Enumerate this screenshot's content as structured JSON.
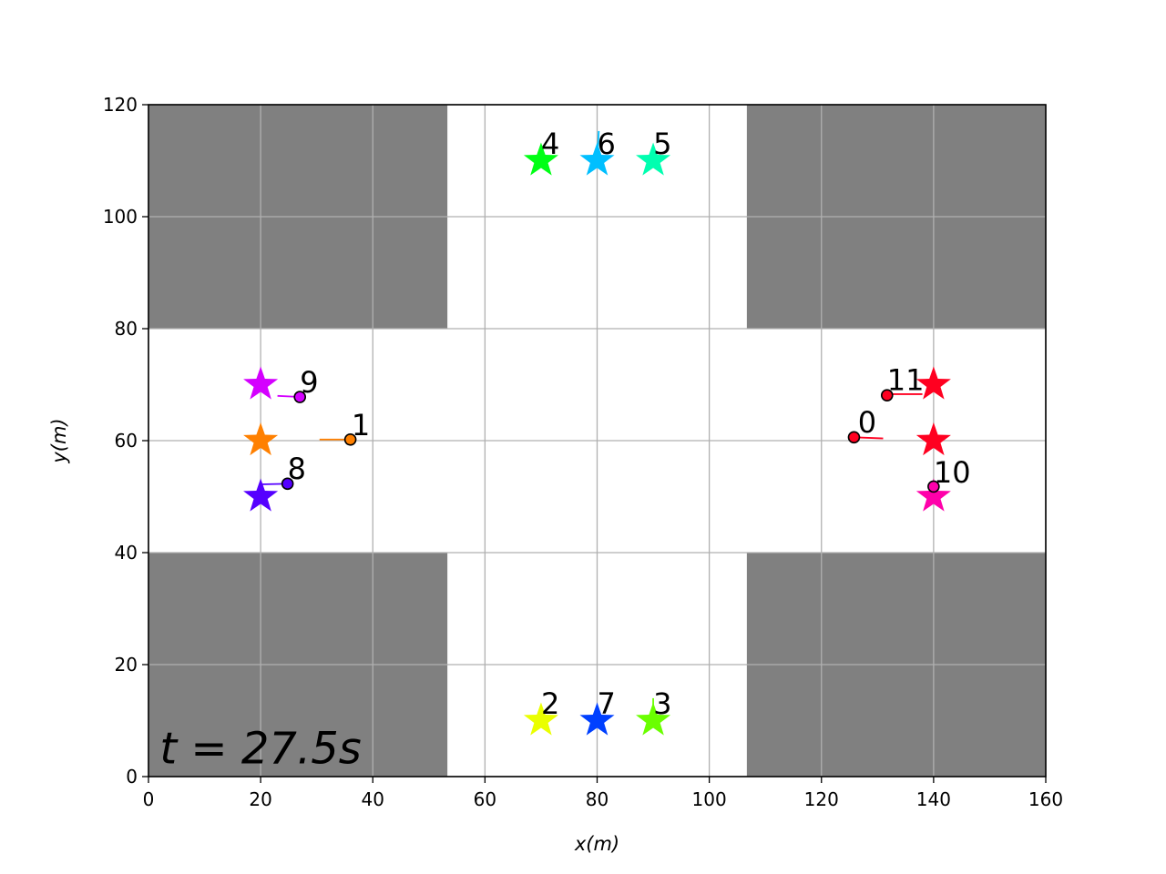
{
  "chart_data": {
    "type": "scatter",
    "title": "",
    "xlabel": "x(m)",
    "ylabel": "y(m)",
    "xlim": [
      0,
      160
    ],
    "ylim": [
      0,
      120
    ],
    "grid": true,
    "x_ticks": [
      0,
      20,
      40,
      60,
      80,
      100,
      120,
      140,
      160
    ],
    "y_ticks": [
      0,
      20,
      40,
      60,
      80,
      100,
      120
    ],
    "x_tick_labels": [
      "0",
      "20",
      "40",
      "60",
      "80",
      "100",
      "120",
      "140",
      "160"
    ],
    "y_tick_labels": [
      "0",
      "20",
      "40",
      "60",
      "80",
      "100",
      "120"
    ],
    "time_annotation": "t = 27.5s",
    "obstacles": [
      {
        "x0": 0,
        "x1": 53.3,
        "y0": 80,
        "y1": 120,
        "color": "#808080"
      },
      {
        "x0": 106.7,
        "x1": 160,
        "y0": 80,
        "y1": 120,
        "color": "#808080"
      },
      {
        "x0": 0,
        "x1": 53.3,
        "y0": 0,
        "y1": 40,
        "color": "#808080"
      },
      {
        "x0": 106.7,
        "x1": 160,
        "y0": 0,
        "y1": 40,
        "color": "#808080"
      }
    ],
    "goals": [
      {
        "agent": "0",
        "x": 140,
        "y": 60,
        "color": "#ff0020"
      },
      {
        "agent": "1",
        "x": 20,
        "y": 60,
        "color": "#ff8000"
      },
      {
        "agent": "2",
        "x": 70,
        "y": 10,
        "color": "#eaff00"
      },
      {
        "agent": "3",
        "x": 90,
        "y": 10,
        "color": "#6aff00"
      },
      {
        "agent": "4",
        "x": 70,
        "y": 110,
        "color": "#00ff15"
      },
      {
        "agent": "5",
        "x": 90,
        "y": 110,
        "color": "#00ffb0"
      },
      {
        "agent": "6",
        "x": 80,
        "y": 110,
        "color": "#00bfff"
      },
      {
        "agent": "7",
        "x": 80,
        "y": 10,
        "color": "#0040ff"
      },
      {
        "agent": "8",
        "x": 20,
        "y": 50,
        "color": "#5500ff"
      },
      {
        "agent": "9",
        "x": 20,
        "y": 70,
        "color": "#d400ff"
      },
      {
        "agent": "10",
        "x": 140,
        "y": 50,
        "color": "#ff00aa"
      },
      {
        "agent": "11",
        "x": 140,
        "y": 70,
        "color": "#ff0020"
      }
    ],
    "agents": [
      {
        "label": "0",
        "x": 125.8,
        "y": 60.6,
        "color": "#ff0020",
        "has_marker": true,
        "trail": [
          [
            125.8,
            60.6
          ],
          [
            131,
            60.4
          ]
        ],
        "label_x": 126.5,
        "label_y": 61.5
      },
      {
        "label": "1",
        "x": 36,
        "y": 60.2,
        "color": "#ff8000",
        "has_marker": true,
        "trail": [
          [
            30.5,
            60.2
          ],
          [
            36,
            60.2
          ]
        ],
        "label_x": 36.2,
        "label_y": 61.0
      },
      {
        "label": "2",
        "x": 70,
        "y": 10,
        "color": "#eaff00",
        "has_marker": false,
        "trail": [],
        "label_x": 70.0,
        "label_y": 11.2
      },
      {
        "label": "3",
        "x": 90,
        "y": 10,
        "color": "#6aff00",
        "has_marker": false,
        "trail": [
          [
            90,
            10
          ],
          [
            90,
            14
          ]
        ],
        "label_x": 90.0,
        "label_y": 11.2
      },
      {
        "label": "4",
        "x": 70,
        "y": 110,
        "color": "#00ff15",
        "has_marker": false,
        "trail": [],
        "label_x": 70.0,
        "label_y": 111.2
      },
      {
        "label": "5",
        "x": 90,
        "y": 110,
        "color": "#00ffb0",
        "has_marker": false,
        "trail": [],
        "label_x": 90.0,
        "label_y": 111.2
      },
      {
        "label": "6",
        "x": 80,
        "y": 110,
        "color": "#00bfff",
        "has_marker": false,
        "trail": [
          [
            80,
            110
          ],
          [
            80.3,
            115.3
          ]
        ],
        "label_x": 80.0,
        "label_y": 111.2
      },
      {
        "label": "7",
        "x": 80,
        "y": 10,
        "color": "#0040ff",
        "has_marker": false,
        "trail": [],
        "label_x": 80.0,
        "label_y": 11.2
      },
      {
        "label": "8",
        "x": 24.8,
        "y": 52.3,
        "color": "#5500ff",
        "has_marker": true,
        "trail": [
          [
            20,
            52.2
          ],
          [
            24.8,
            52.3
          ]
        ],
        "label_x": 24.8,
        "label_y": 53.2
      },
      {
        "label": "9",
        "x": 27,
        "y": 67.8,
        "color": "#d400ff",
        "has_marker": true,
        "trail": [
          [
            23,
            68
          ],
          [
            27,
            67.8
          ]
        ],
        "label_x": 27.0,
        "label_y": 68.6
      },
      {
        "label": "10",
        "x": 140,
        "y": 51.8,
        "color": "#ff00aa",
        "has_marker": true,
        "trail": [],
        "label_x": 140.0,
        "label_y": 52.5
      },
      {
        "label": "11",
        "x": 131.7,
        "y": 68.1,
        "color": "#ff0020",
        "has_marker": true,
        "trail": [
          [
            131.7,
            68.3
          ],
          [
            138,
            68.3
          ]
        ],
        "label_x": 131.7,
        "label_y": 69.0
      }
    ]
  }
}
